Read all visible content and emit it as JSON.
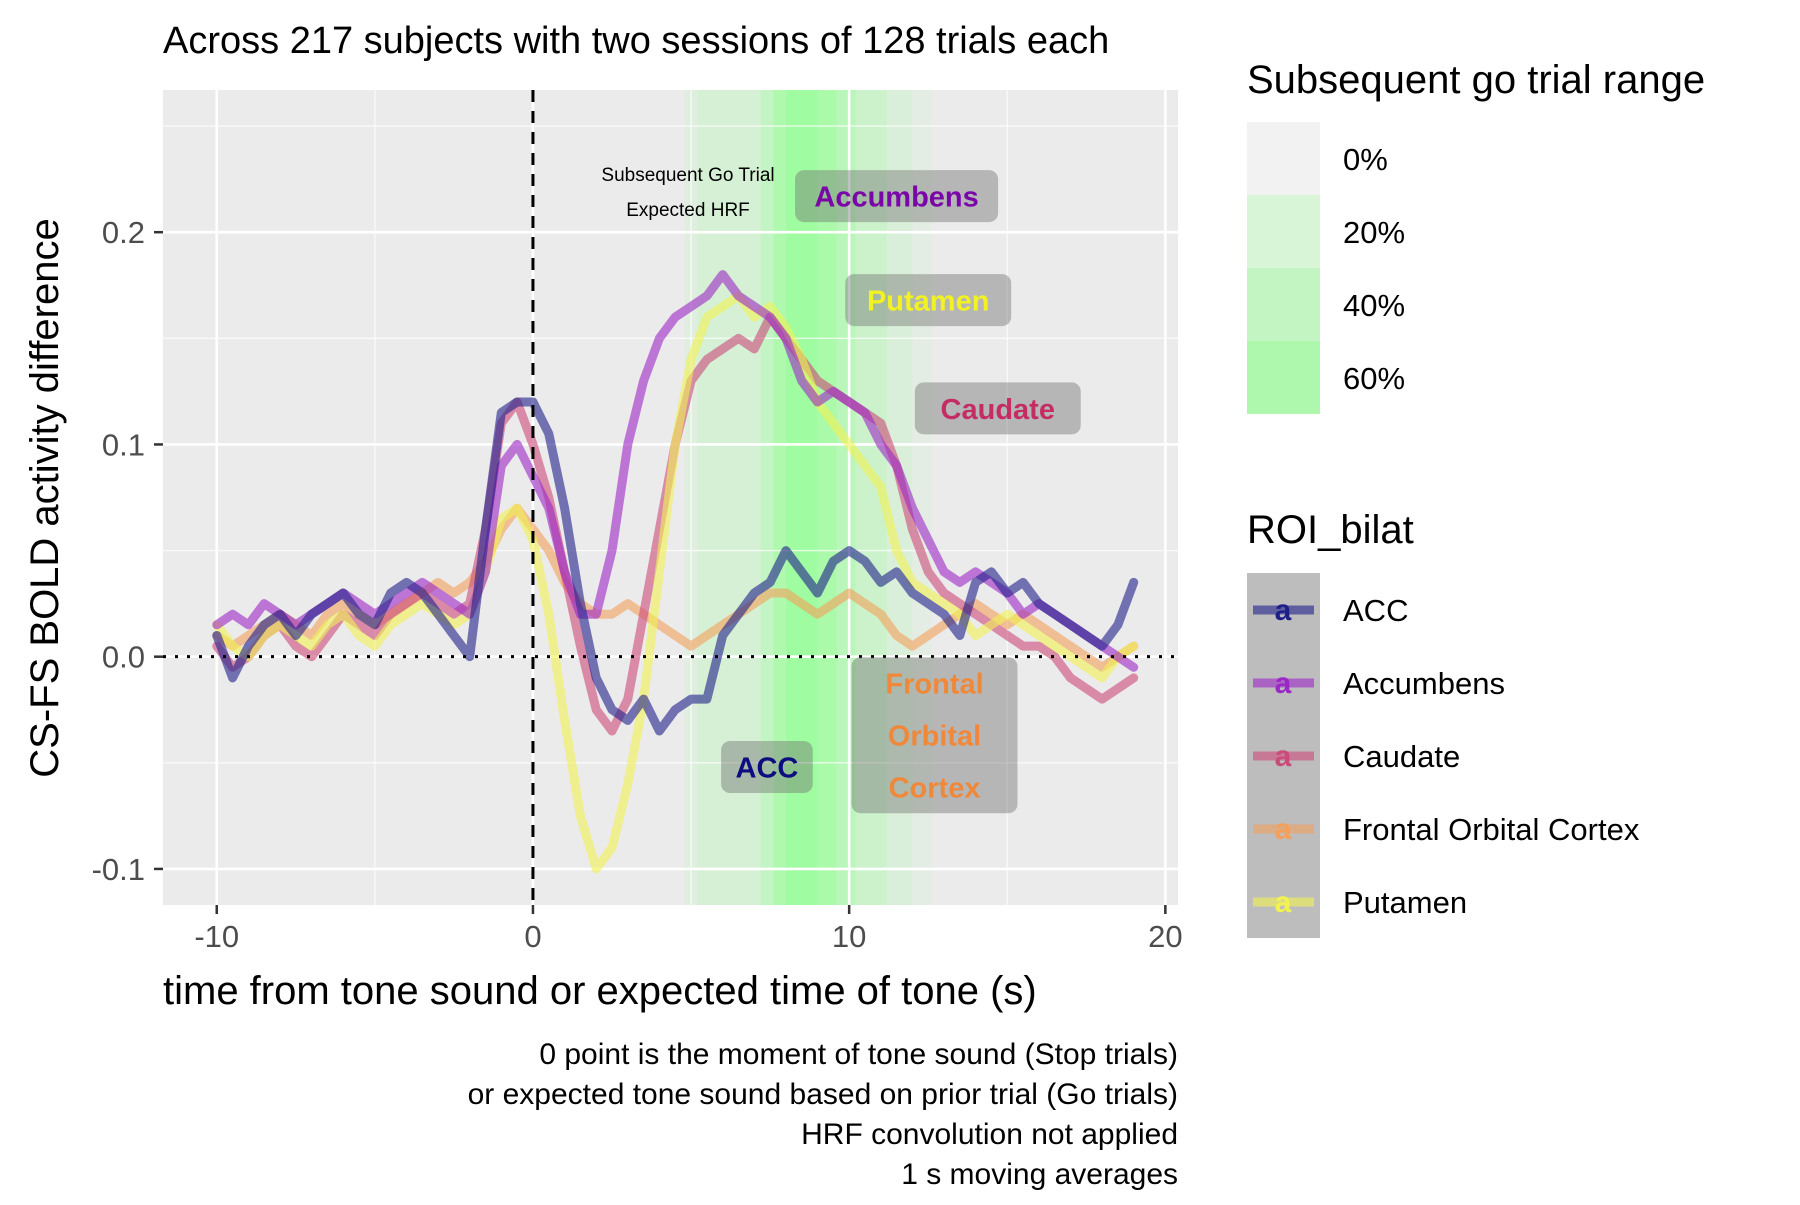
{
  "chart_data": {
    "type": "line",
    "title": "Across 217 subjects with two sessions of 128 trials each",
    "xlabel": "time from tone sound or expected time of tone (s)",
    "ylabel": "CS-FS BOLD activity difference",
    "caption": [
      "0 point is the moment of tone sound (Stop trials)",
      "or expected tone sound based on prior trial (Go trials)",
      "HRF convolution not applied",
      "1 s moving averages"
    ],
    "xlim": [
      -11.7,
      20.4
    ],
    "ylim": [
      -0.117,
      0.267
    ],
    "xticks": [
      -10,
      0,
      10,
      20
    ],
    "xtick_labels": [
      "-10",
      "0",
      "10",
      "20"
    ],
    "yticks": [
      -0.1,
      0.0,
      0.1,
      0.2
    ],
    "ytick_labels": [
      "-0.1",
      "0.0",
      "0.1",
      "0.2"
    ],
    "grid": true,
    "background": "#ebebeb",
    "reference_lines": [
      {
        "axis": "x",
        "value": 0,
        "style": "dashed"
      },
      {
        "axis": "y",
        "value": 0,
        "style": "dotted"
      }
    ],
    "annotation_text": [
      "Subsequent Go Trial",
      "Expected HRF"
    ],
    "go_trial_band": {
      "x_edges": [
        4.8,
        5.2,
        7.2,
        7.6,
        8.0,
        9.0,
        9.6,
        10.2,
        11.2,
        12.0,
        12.6
      ],
      "fractions": [
        0.1,
        0.18,
        0.32,
        0.48,
        0.6,
        0.52,
        0.4,
        0.26,
        0.14,
        0.06
      ]
    },
    "legend_fill": {
      "title": "Subsequent go trial range",
      "entries": [
        "0%",
        "20%",
        "40%",
        "60%"
      ],
      "colors": [
        "#f2f2f2",
        "#d8f5d8",
        "#c3f5c3",
        "#aef8ae"
      ]
    },
    "legend_color": {
      "title": "ROI_bilat",
      "glyph": "a",
      "entries": [
        "ACC",
        "Accumbens",
        "Caudate",
        "Frontal Orbital Cortex",
        "Putamen"
      ]
    },
    "series": [
      {
        "name": "ACC",
        "color": "#1f1f8a",
        "label_color": "#0d0d80",
        "label_lines": [
          "ACC"
        ],
        "label_pos": [
          7.4,
          -0.052
        ],
        "x": [
          -10,
          -9.5,
          -9,
          -8.5,
          -8,
          -7.5,
          -7,
          -6.5,
          -6,
          -5.5,
          -5,
          -4.5,
          -4,
          -3.5,
          -3,
          -2.5,
          -2,
          -1.5,
          -1,
          -0.5,
          0,
          0.5,
          1,
          1.5,
          2,
          2.5,
          3,
          3.5,
          4,
          4.5,
          5,
          5.5,
          6,
          6.5,
          7,
          7.5,
          8,
          8.5,
          9,
          9.5,
          10,
          10.5,
          11,
          11.5,
          12,
          12.5,
          13,
          13.5,
          14,
          14.5,
          15,
          15.5,
          16,
          16.5,
          17,
          17.5,
          18,
          18.5,
          19
        ],
        "y": [
          0.01,
          -0.01,
          0.005,
          0.015,
          0.02,
          0.01,
          0.02,
          0.025,
          0.03,
          0.02,
          0.015,
          0.03,
          0.035,
          0.03,
          0.02,
          0.01,
          0.0,
          0.06,
          0.115,
          0.12,
          0.12,
          0.105,
          0.07,
          0.025,
          -0.01,
          -0.025,
          -0.03,
          -0.02,
          -0.035,
          -0.025,
          -0.02,
          -0.02,
          0.01,
          0.02,
          0.03,
          0.035,
          0.05,
          0.04,
          0.03,
          0.045,
          0.05,
          0.045,
          0.035,
          0.04,
          0.03,
          0.025,
          0.02,
          0.01,
          0.035,
          0.04,
          0.03,
          0.035,
          0.025,
          0.02,
          0.015,
          0.01,
          0.005,
          0.015,
          0.035
        ]
      },
      {
        "name": "Accumbens",
        "color": "#9c27c7",
        "label_color": "#7a06a8",
        "label_lines": [
          "Accumbens"
        ],
        "label_pos": [
          11.5,
          0.217
        ],
        "x": [
          -10,
          -9.5,
          -9,
          -8.5,
          -8,
          -7.5,
          -7,
          -6.5,
          -6,
          -5.5,
          -5,
          -4.5,
          -4,
          -3.5,
          -3,
          -2.5,
          -2,
          -1.5,
          -1,
          -0.5,
          0,
          0.5,
          1,
          1.5,
          2,
          2.5,
          3,
          3.5,
          4,
          4.5,
          5,
          5.5,
          6,
          6.5,
          7,
          7.5,
          8,
          8.5,
          9,
          9.5,
          10,
          10.5,
          11,
          11.5,
          12,
          12.5,
          13,
          13.5,
          14,
          14.5,
          15,
          15.5,
          16,
          16.5,
          17,
          17.5,
          18,
          18.5,
          19
        ],
        "y": [
          0.015,
          0.02,
          0.015,
          0.025,
          0.02,
          0.015,
          0.02,
          0.025,
          0.03,
          0.025,
          0.02,
          0.025,
          0.03,
          0.035,
          0.03,
          0.025,
          0.02,
          0.04,
          0.09,
          0.1,
          0.085,
          0.07,
          0.04,
          0.02,
          0.02,
          0.05,
          0.1,
          0.13,
          0.15,
          0.16,
          0.165,
          0.17,
          0.18,
          0.17,
          0.165,
          0.16,
          0.15,
          0.13,
          0.12,
          0.125,
          0.12,
          0.115,
          0.1,
          0.09,
          0.07,
          0.055,
          0.04,
          0.035,
          0.04,
          0.035,
          0.03,
          0.02,
          0.025,
          0.02,
          0.015,
          0.01,
          0.005,
          0.0,
          -0.005
        ]
      },
      {
        "name": "Caudate",
        "color": "#cc4a7a",
        "label_color": "#c42d64",
        "label_lines": [
          "Caudate"
        ],
        "label_pos": [
          14.7,
          0.117
        ],
        "x": [
          -10,
          -9.5,
          -9,
          -8.5,
          -8,
          -7.5,
          -7,
          -6.5,
          -6,
          -5.5,
          -5,
          -4.5,
          -4,
          -3.5,
          -3,
          -2.5,
          -2,
          -1.5,
          -1,
          -0.5,
          0,
          0.5,
          1,
          1.5,
          2,
          2.5,
          3,
          3.5,
          4,
          4.5,
          5,
          5.5,
          6,
          6.5,
          7,
          7.5,
          8,
          8.5,
          9,
          9.5,
          10,
          10.5,
          11,
          11.5,
          12,
          12.5,
          13,
          13.5,
          14,
          14.5,
          15,
          15.5,
          16,
          16.5,
          17,
          17.5,
          18,
          18.5,
          19
        ],
        "y": [
          0.005,
          -0.005,
          0.0,
          0.01,
          0.015,
          0.005,
          0.0,
          0.01,
          0.02,
          0.015,
          0.01,
          0.02,
          0.025,
          0.03,
          0.025,
          0.02,
          0.025,
          0.06,
          0.11,
          0.12,
          0.1,
          0.075,
          0.04,
          0.005,
          -0.025,
          -0.035,
          -0.02,
          0.02,
          0.06,
          0.1,
          0.13,
          0.14,
          0.145,
          0.15,
          0.145,
          0.16,
          0.15,
          0.14,
          0.13,
          0.125,
          0.12,
          0.115,
          0.11,
          0.09,
          0.06,
          0.04,
          0.03,
          0.025,
          0.02,
          0.015,
          0.01,
          0.005,
          0.005,
          0.0,
          -0.01,
          -0.015,
          -0.02,
          -0.015,
          -0.01
        ]
      },
      {
        "name": "Frontal Orbital Cortex",
        "color": "#f4a05a",
        "label_color": "#f0883a",
        "label_lines": [
          "Frontal",
          "Orbital",
          "Cortex"
        ],
        "label_pos": [
          12.7,
          -0.037
        ],
        "x": [
          -10,
          -9.5,
          -9,
          -8.5,
          -8,
          -7.5,
          -7,
          -6.5,
          -6,
          -5.5,
          -5,
          -4.5,
          -4,
          -3.5,
          -3,
          -2.5,
          -2,
          -1.5,
          -1,
          -0.5,
          0,
          0.5,
          1,
          1.5,
          2,
          2.5,
          3,
          3.5,
          4,
          4.5,
          5,
          5.5,
          6,
          6.5,
          7,
          7.5,
          8,
          8.5,
          9,
          9.5,
          10,
          10.5,
          11,
          11.5,
          12,
          12.5,
          13,
          13.5,
          14,
          14.5,
          15,
          15.5,
          16,
          16.5,
          17,
          17.5,
          18,
          18.5,
          19
        ],
        "y": [
          0.01,
          0.005,
          0.01,
          0.015,
          0.02,
          0.015,
          0.01,
          0.02,
          0.025,
          0.02,
          0.015,
          0.02,
          0.025,
          0.03,
          0.035,
          0.03,
          0.035,
          0.045,
          0.06,
          0.07,
          0.06,
          0.05,
          0.035,
          0.025,
          0.02,
          0.02,
          0.025,
          0.02,
          0.015,
          0.01,
          0.005,
          0.01,
          0.015,
          0.02,
          0.025,
          0.03,
          0.03,
          0.025,
          0.02,
          0.025,
          0.03,
          0.025,
          0.02,
          0.01,
          0.005,
          0.01,
          0.015,
          0.02,
          0.025,
          0.02,
          0.015,
          0.02,
          0.015,
          0.01,
          0.005,
          0.0,
          -0.005,
          0.0,
          0.005
        ]
      },
      {
        "name": "Putamen",
        "color": "#f2f252",
        "label_color": "#f2f222",
        "label_lines": [
          "Putamen"
        ],
        "label_pos": [
          12.5,
          0.168
        ],
        "x": [
          -10,
          -9.5,
          -9,
          -8.5,
          -8,
          -7.5,
          -7,
          -6.5,
          -6,
          -5.5,
          -5,
          -4.5,
          -4,
          -3.5,
          -3,
          -2.5,
          -2,
          -1.5,
          -1,
          -0.5,
          0,
          0.5,
          1,
          1.5,
          2,
          2.5,
          3,
          3.5,
          4,
          4.5,
          5,
          5.5,
          6,
          6.5,
          7,
          7.5,
          8,
          8.5,
          9,
          9.5,
          10,
          10.5,
          11,
          11.5,
          12,
          12.5,
          13,
          13.5,
          14,
          14.5,
          15,
          15.5,
          16,
          16.5,
          17,
          17.5,
          18,
          18.5,
          19
        ],
        "y": [
          0.015,
          0.005,
          0.0,
          0.01,
          0.015,
          0.01,
          0.005,
          0.015,
          0.02,
          0.01,
          0.005,
          0.015,
          0.02,
          0.025,
          0.02,
          0.015,
          0.02,
          0.04,
          0.065,
          0.07,
          0.055,
          0.02,
          -0.03,
          -0.075,
          -0.1,
          -0.09,
          -0.06,
          -0.02,
          0.04,
          0.1,
          0.14,
          0.16,
          0.165,
          0.17,
          0.16,
          0.165,
          0.155,
          0.14,
          0.12,
          0.11,
          0.1,
          0.09,
          0.08,
          0.05,
          0.035,
          0.03,
          0.025,
          0.02,
          0.01,
          0.015,
          0.02,
          0.015,
          0.01,
          0.005,
          0.0,
          -0.005,
          -0.01,
          0.0,
          0.005
        ]
      }
    ]
  }
}
